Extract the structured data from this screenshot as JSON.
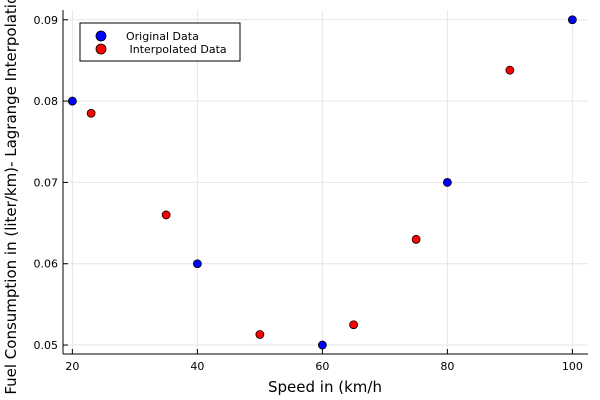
{
  "chart_data": {
    "type": "scatter",
    "title": "",
    "xlabel": "Speed in (km/h",
    "ylabel": "Fuel Consumption in (liter/km)- Lagrange Interpolation",
    "xlim": [
      18.5,
      102.5
    ],
    "ylim": [
      0.0489,
      0.0912
    ],
    "xticks": [
      20,
      40,
      60,
      80,
      100
    ],
    "xtick_labels": [
      "20",
      "40",
      "60",
      "80",
      "100"
    ],
    "yticks": [
      0.05,
      0.06,
      0.07,
      0.08,
      0.09
    ],
    "ytick_labels": [
      "0.05",
      "0.06",
      "0.07",
      "0.08",
      "0.09"
    ],
    "grid": true,
    "legend_position": "top-left",
    "series": [
      {
        "name": "Original Data",
        "color": "#0000ff",
        "x": [
          20,
          40,
          60,
          80,
          100
        ],
        "y": [
          0.08,
          0.06,
          0.05,
          0.07,
          0.09
        ]
      },
      {
        "name": " Interpolated Data",
        "color": "#ff0000",
        "x": [
          23,
          35,
          50,
          65,
          75,
          90
        ],
        "y": [
          0.0785,
          0.066,
          0.0513,
          0.0525,
          0.063,
          0.0838
        ]
      }
    ]
  }
}
